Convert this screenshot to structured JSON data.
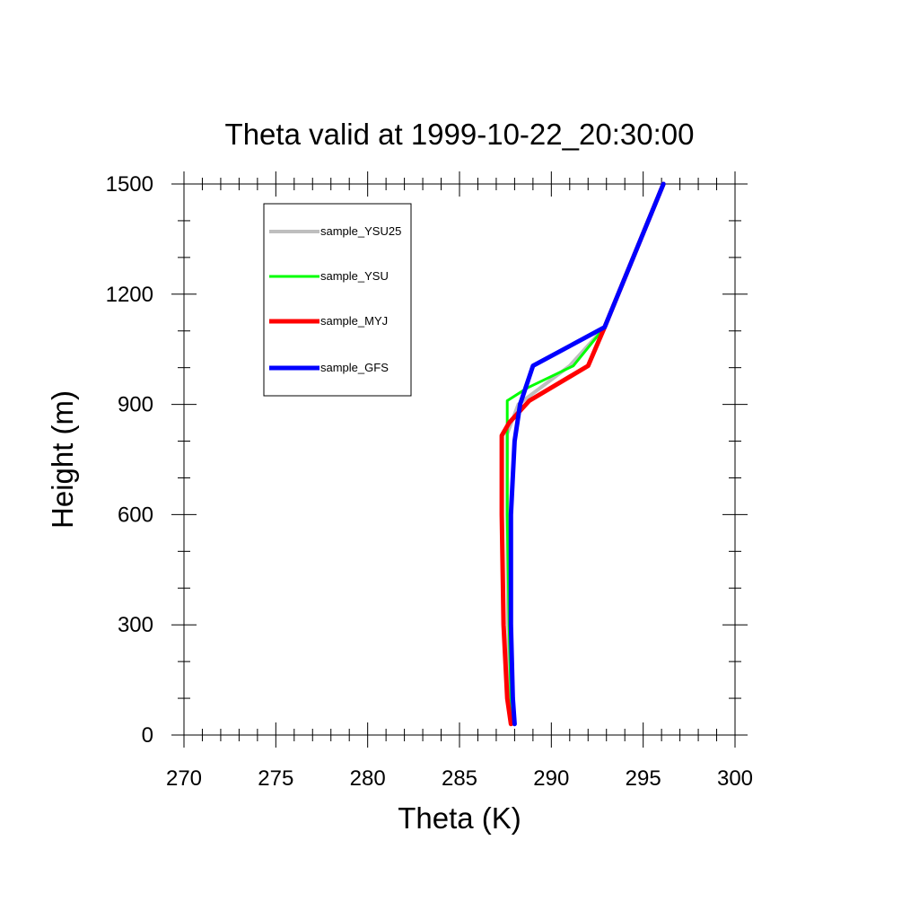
{
  "chart_data": {
    "type": "line",
    "title": "Theta valid at 1999-10-22_20:30:00",
    "xlabel": "Theta (K)",
    "ylabel": "Height (m)",
    "xlim": [
      270,
      300
    ],
    "ylim": [
      0,
      1500
    ],
    "x_ticks": [
      270,
      275,
      280,
      285,
      290,
      295,
      300
    ],
    "y_ticks": [
      0,
      300,
      600,
      900,
      1200,
      1500
    ],
    "x_minor_step": 1,
    "y_minor_step": 100,
    "grid": false,
    "legend_placement": "top-left",
    "series": [
      {
        "name": "sample_YSU25",
        "color": "#bebebe",
        "stroke_width": 4,
        "points": [
          [
            287.9,
            30
          ],
          [
            287.75,
            100
          ],
          [
            287.65,
            300
          ],
          [
            287.6,
            600
          ],
          [
            287.6,
            820
          ],
          [
            288.2,
            900
          ],
          [
            291,
            1005
          ],
          [
            292.9,
            1110
          ],
          [
            296.1,
            1500
          ]
        ]
      },
      {
        "name": "sample_YSU",
        "color": "#00ff00",
        "stroke_width": 3,
        "points": [
          [
            287.9,
            30
          ],
          [
            287.8,
            100
          ],
          [
            287.7,
            300
          ],
          [
            287.6,
            600
          ],
          [
            287.6,
            910
          ],
          [
            288.7,
            945
          ],
          [
            291.2,
            1005
          ],
          [
            292.9,
            1110
          ],
          [
            296.1,
            1500
          ]
        ]
      },
      {
        "name": "sample_MYJ",
        "color": "#ff0000",
        "stroke_width": 5,
        "points": [
          [
            287.8,
            30
          ],
          [
            287.6,
            100
          ],
          [
            287.4,
            300
          ],
          [
            287.3,
            600
          ],
          [
            287.3,
            815
          ],
          [
            287.7,
            850
          ],
          [
            288.8,
            910
          ],
          [
            292,
            1005
          ],
          [
            292.9,
            1110
          ],
          [
            296.1,
            1500
          ]
        ]
      },
      {
        "name": "sample_GFS",
        "color": "#0000ff",
        "stroke_width": 5,
        "points": [
          [
            288.0,
            30
          ],
          [
            287.9,
            100
          ],
          [
            287.8,
            300
          ],
          [
            287.8,
            600
          ],
          [
            288.0,
            800
          ],
          [
            288.3,
            900
          ],
          [
            289.0,
            1005
          ],
          [
            292.9,
            1110
          ],
          [
            296.1,
            1500
          ]
        ]
      }
    ]
  }
}
